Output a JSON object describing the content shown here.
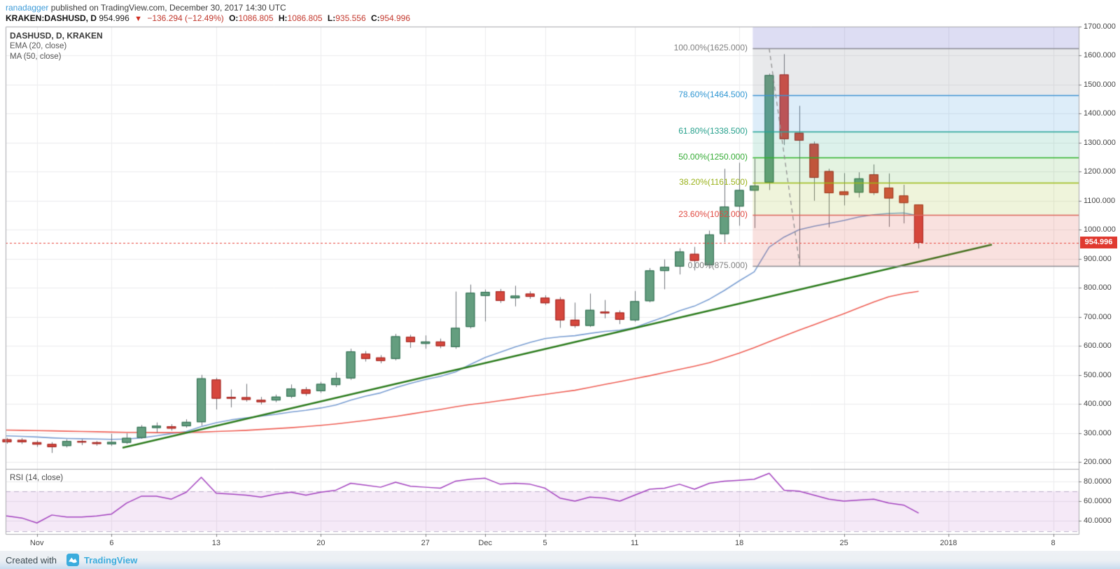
{
  "header": {
    "author": "ranadagger",
    "published_text": "published on TradingView.com, December 30, 2017 14:30 UTC",
    "symbol": "KRAKEN:DASHUSD, D",
    "last_price": "954.996",
    "change_arrow": "▼",
    "change_text": "−136.294 (−12.49%)",
    "ohlc": [
      {
        "label": "O:",
        "value": "1086.805"
      },
      {
        "label": "H:",
        "value": "1086.805"
      },
      {
        "label": "L:",
        "value": "935.556"
      },
      {
        "label": "C:",
        "value": "954.996"
      }
    ]
  },
  "legend": {
    "title": "DASHUSD, D, KRAKEN",
    "ema": "EMA (20, close)",
    "ma": "MA (50, close)"
  },
  "rsi_title": "RSI (14, close)",
  "footer": {
    "created_with": "Created with",
    "brand": "TradingView"
  },
  "colors": {
    "accent_blue": "#3c9bd8",
    "negative_red": "#c43a2f",
    "candle_up_fill": "#649e7f",
    "candle_up_border": "#2d6a4e",
    "candle_down_fill": "#d6473d",
    "candle_down_border": "#9c2420",
    "wick": "#70737a",
    "ema20": "#7b9fd3",
    "ma50": "#ef6056",
    "trendline": "#2e7d1f",
    "rsi_line": "#a341bf",
    "rsi_band_fill": "rgba(156,39,176,0.10)",
    "rsi_band_dash": "#bdb0cb",
    "current_price_line": "#e8453c",
    "badge_bg": "#e03a30",
    "grid": "#ececee",
    "frame": "#a9a9ae"
  },
  "chart_data": {
    "type": "candlestick",
    "title": "DASHUSD, D, KRAKEN",
    "exchange": "KRAKEN",
    "symbol": "DASHUSD",
    "interval": "D",
    "ylim_main": [
      176,
      1700
    ],
    "ylim_rsi": [
      26.9,
      92.4
    ],
    "grid": true,
    "current_price": 954.996,
    "current_price_label": "954.996",
    "price_axis_ticks": [
      {
        "label": "1700.000",
        "value": 1700
      },
      {
        "label": "1600.000",
        "value": 1600
      },
      {
        "label": "1500.000",
        "value": 1500
      },
      {
        "label": "1400.000",
        "value": 1400
      },
      {
        "label": "1300.000",
        "value": 1300
      },
      {
        "label": "1200.000",
        "value": 1200
      },
      {
        "label": "1100.000",
        "value": 1100
      },
      {
        "label": "1000.000",
        "value": 1000
      },
      {
        "label": "900.000",
        "value": 900
      },
      {
        "label": "800.000",
        "value": 800
      },
      {
        "label": "700.000",
        "value": 700
      },
      {
        "label": "600.000",
        "value": 600
      },
      {
        "label": "500.000",
        "value": 500
      },
      {
        "label": "400.000",
        "value": 400
      },
      {
        "label": "300.000",
        "value": 300
      },
      {
        "label": "200.000",
        "value": 200
      }
    ],
    "rsi_axis_ticks": [
      {
        "label": "80.0000",
        "value": 80
      },
      {
        "label": "60.0000",
        "value": 60
      },
      {
        "label": "40.0000",
        "value": 40
      }
    ],
    "rsi_band": [
      30,
      70
    ],
    "time_ticks": [
      {
        "label": "Nov",
        "day_index": 2
      },
      {
        "label": "6",
        "day_index": 7
      },
      {
        "label": "13",
        "day_index": 14
      },
      {
        "label": "20",
        "day_index": 21
      },
      {
        "label": "27",
        "day_index": 28
      },
      {
        "label": "Dec",
        "day_index": 32
      },
      {
        "label": "5",
        "day_index": 36
      },
      {
        "label": "11",
        "day_index": 42
      },
      {
        "label": "18",
        "day_index": 49
      },
      {
        "label": "25",
        "day_index": 56
      },
      {
        "label": "2018",
        "day_index": 63
      },
      {
        "label": "8",
        "day_index": 70
      }
    ],
    "dates_start": "2017-10-30",
    "dates_end": "2017-12-30",
    "candles_ohlc": [
      [
        278,
        283,
        263,
        268
      ],
      [
        276,
        282,
        262,
        268
      ],
      [
        268,
        274,
        252,
        260
      ],
      [
        262,
        268,
        231,
        251
      ],
      [
        255,
        278,
        250,
        272
      ],
      [
        272,
        278,
        258,
        267
      ],
      [
        268,
        272,
        256,
        262
      ],
      [
        261,
        297,
        255,
        269
      ],
      [
        266,
        299,
        262,
        283
      ],
      [
        283,
        327,
        280,
        321
      ],
      [
        317,
        336,
        301,
        325
      ],
      [
        323,
        330,
        308,
        315
      ],
      [
        323,
        347,
        318,
        338
      ],
      [
        337,
        500,
        325,
        488
      ],
      [
        484,
        490,
        381,
        418
      ],
      [
        424,
        450,
        388,
        418
      ],
      [
        423,
        469,
        408,
        414
      ],
      [
        414,
        424,
        398,
        406
      ],
      [
        412,
        432,
        406,
        425
      ],
      [
        425,
        467,
        420,
        453
      ],
      [
        450,
        458,
        428,
        435
      ],
      [
        444,
        476,
        438,
        469
      ],
      [
        465,
        508,
        458,
        489
      ],
      [
        488,
        590,
        483,
        581
      ],
      [
        573,
        582,
        546,
        555
      ],
      [
        560,
        568,
        540,
        548
      ],
      [
        555,
        641,
        550,
        633
      ],
      [
        631,
        638,
        593,
        613
      ],
      [
        607,
        636,
        590,
        615
      ],
      [
        615,
        625,
        592,
        599
      ],
      [
        596,
        787,
        590,
        662
      ],
      [
        665,
        811,
        660,
        783
      ],
      [
        772,
        794,
        684,
        786
      ],
      [
        788,
        796,
        748,
        755
      ],
      [
        764,
        807,
        736,
        773
      ],
      [
        780,
        788,
        762,
        769
      ],
      [
        766,
        774,
        741,
        747
      ],
      [
        760,
        768,
        662,
        688
      ],
      [
        690,
        749,
        662,
        669
      ],
      [
        669,
        780,
        665,
        724
      ],
      [
        718,
        758,
        695,
        712
      ],
      [
        715,
        722,
        675,
        690
      ],
      [
        688,
        789,
        683,
        754
      ],
      [
        754,
        868,
        750,
        860
      ],
      [
        858,
        898,
        795,
        872
      ],
      [
        873,
        936,
        846,
        925
      ],
      [
        917,
        941,
        860,
        893
      ],
      [
        878,
        997,
        866,
        984
      ],
      [
        985,
        1210,
        957,
        1080
      ],
      [
        1080,
        1231,
        1014,
        1137
      ],
      [
        1135,
        1245,
        1006,
        1152
      ],
      [
        1163,
        1538,
        1137,
        1533
      ],
      [
        1535,
        1605,
        1292,
        1312
      ],
      [
        1334,
        1427,
        875,
        1307
      ],
      [
        1296,
        1304,
        1100,
        1179
      ],
      [
        1202,
        1210,
        1008,
        1126
      ],
      [
        1132,
        1195,
        1084,
        1120
      ],
      [
        1128,
        1198,
        1111,
        1177
      ],
      [
        1191,
        1225,
        1120,
        1127
      ],
      [
        1145,
        1194,
        1010,
        1108
      ],
      [
        1118,
        1155,
        1022,
        1092
      ],
      [
        1086.805,
        1086.805,
        935.556,
        954.996
      ]
    ],
    "ema20": [
      290,
      288,
      286,
      283,
      281,
      280,
      279,
      278,
      279,
      283,
      290,
      298,
      305,
      322,
      335,
      345,
      352,
      358,
      364,
      372,
      378,
      386,
      396,
      413,
      427,
      438,
      456,
      471,
      484,
      495,
      510,
      536,
      560,
      578,
      596,
      612,
      625,
      631,
      635,
      643,
      650,
      654,
      663,
      682,
      700,
      721,
      737,
      761,
      791,
      824,
      855,
      940,
      975,
      1000,
      1012,
      1022,
      1032,
      1044,
      1052,
      1056,
      1058,
      1048
    ],
    "ma50": [
      310,
      309,
      308,
      307,
      306,
      305,
      304,
      303,
      302,
      302,
      301,
      301,
      302,
      303,
      305,
      307,
      309,
      312,
      315,
      318,
      322,
      326,
      331,
      337,
      343,
      350,
      357,
      365,
      373,
      381,
      390,
      398,
      404,
      411,
      418,
      426,
      433,
      440,
      447,
      457,
      467,
      477,
      487,
      497,
      508,
      519,
      530,
      542,
      558,
      575,
      594,
      614,
      634,
      654,
      673,
      692,
      711,
      731,
      751,
      769,
      780,
      788
    ],
    "rsi14": [
      45,
      43,
      38,
      46,
      44,
      44,
      45,
      47,
      58,
      65,
      65,
      62,
      69,
      84,
      68,
      67,
      66,
      64,
      67,
      69,
      66,
      69,
      71,
      78,
      76,
      74,
      79,
      75,
      74,
      73,
      80,
      82,
      83,
      77,
      78,
      77,
      73,
      63,
      60,
      64,
      63,
      60,
      66,
      72,
      73,
      77,
      72,
      78,
      80,
      81,
      82,
      88,
      71,
      70,
      66,
      62,
      60,
      61,
      62,
      58,
      56,
      48
    ],
    "trendline": {
      "from_day_index": 7.73,
      "from_price": 249,
      "to_day_index": 65.9,
      "to_price": 949
    },
    "fib": {
      "start_day_index": 49.9,
      "dashed_guide": {
        "from_day_index": 51,
        "from_price": 1625,
        "to_day_index": 53.05,
        "to_price": 875
      },
      "levels": [
        {
          "label": "100.00%(1625.000)",
          "price": 1625,
          "line": "#8b8b93",
          "text": "#808080"
        },
        {
          "label": "78.60%(1464.500)",
          "price": 1464.5,
          "line": "#3f92d2",
          "text": "#2f96d2"
        },
        {
          "label": "61.80%(1338.500)",
          "price": 1338.5,
          "line": "#27a598",
          "text": "#26a08c"
        },
        {
          "label": "50.00%(1250.000)",
          "price": 1250,
          "line": "#2eb32e",
          "text": "#35ab35"
        },
        {
          "label": "38.20%(1161.500)",
          "price": 1161.5,
          "line": "#9cba16",
          "text": "#9ab21b"
        },
        {
          "label": "23.60%(1052.000)",
          "price": 1052,
          "line": "#dc6a5d",
          "text": "#e04a41"
        },
        {
          "label": "0.00%(875.000)",
          "price": 875,
          "line": "#8b8b93",
          "text": "#808080"
        }
      ],
      "zones": [
        {
          "from": "top",
          "to": 1625,
          "color": "rgba(101,98,202,0.22)"
        },
        {
          "from": 1625,
          "to": 1464.5,
          "color": "rgba(120,123,134,0.17)"
        },
        {
          "from": 1464.5,
          "to": 1338.5,
          "color": "rgba(56,147,217,0.17)"
        },
        {
          "from": 1338.5,
          "to": 1250,
          "color": "rgba(38,166,131,0.16)"
        },
        {
          "from": 1250,
          "to": 1161.5,
          "color": "rgba(76,175,56,0.15)"
        },
        {
          "from": 1161.5,
          "to": 1052,
          "color": "rgba(158,184,33,0.16)"
        },
        {
          "from": 1052,
          "to": 875,
          "color": "rgba(217,68,56,0.16)"
        }
      ]
    }
  }
}
